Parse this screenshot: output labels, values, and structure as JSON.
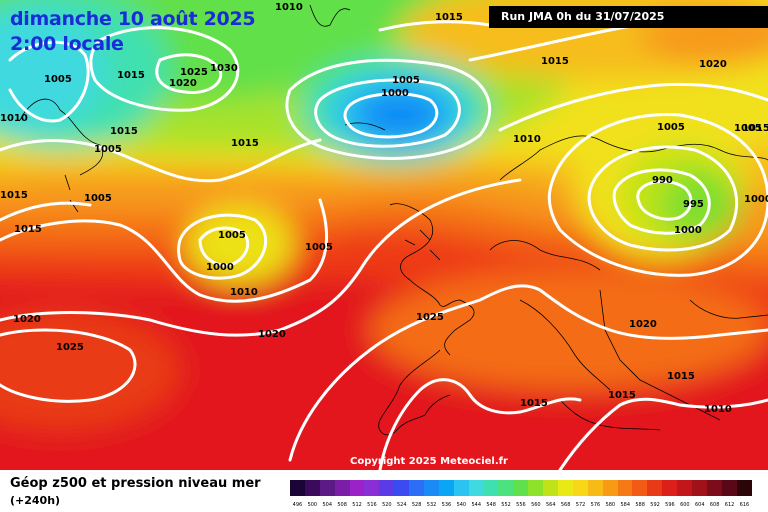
{
  "header": {
    "date": "dimanche 10 août 2025",
    "time": "2:00 locale",
    "run": "Run JMA 0h du 31/07/2025"
  },
  "copyright": "Copyright 2025 Meteociel.fr",
  "footer": {
    "title": "Géop z500 et pression niveau mer",
    "subtitle": "(+240h)"
  },
  "legend": {
    "labels": [
      "496",
      "500",
      "504",
      "508",
      "512",
      "516",
      "520",
      "524",
      "528",
      "532",
      "536",
      "540",
      "544",
      "548",
      "552",
      "556",
      "560",
      "564",
      "568",
      "572",
      "576",
      "580",
      "584",
      "588",
      "592",
      "596",
      "600",
      "604",
      "608",
      "612",
      "616"
    ],
    "colors": [
      "#1b0536",
      "#3b0a5c",
      "#5c1a86",
      "#7a1ea7",
      "#9b22c7",
      "#8a2fd6",
      "#5b3be6",
      "#3b4bf0",
      "#2c6ef5",
      "#1a8af7",
      "#0aa5f5",
      "#2bc4f2",
      "#3fd9e0",
      "#3fe0b0",
      "#4be27f",
      "#60e04a",
      "#8fe22a",
      "#bfe318",
      "#e9ea15",
      "#f7d717",
      "#f8ba16",
      "#f89a14",
      "#f67a14",
      "#f25a15",
      "#e93a17",
      "#dc2019",
      "#c3161a",
      "#a1111a",
      "#7d0c1a",
      "#5a0818",
      "#2c0508"
    ],
    "text_color_dark": "#000000"
  },
  "isobars": [
    {
      "label": "1010",
      "type": "pressure"
    },
    {
      "label": "1015",
      "type": "pressure"
    },
    {
      "label": "1015",
      "type": "pressure"
    },
    {
      "label": "1005",
      "type": "pressure"
    },
    {
      "label": "1015",
      "type": "pressure"
    },
    {
      "label": "1020",
      "type": "pressure"
    },
    {
      "label": "1025",
      "type": "pressure"
    },
    {
      "label": "1030",
      "type": "pressure"
    },
    {
      "label": "1005",
      "type": "pressure"
    },
    {
      "label": "1000",
      "type": "pressure"
    },
    {
      "label": "1020",
      "type": "pressure"
    },
    {
      "label": "1015",
      "type": "pressure"
    },
    {
      "label": "1010",
      "type": "pressure"
    },
    {
      "label": "1015",
      "type": "pressure"
    },
    {
      "label": "1010",
      "type": "pressure"
    },
    {
      "label": "1005",
      "type": "pressure"
    },
    {
      "label": "1015",
      "type": "pressure"
    },
    {
      "label": "1005",
      "type": "pressure"
    },
    {
      "label": "1005",
      "type": "pressure"
    },
    {
      "label": "1015",
      "type": "pressure"
    },
    {
      "label": "1005",
      "type": "pressure"
    },
    {
      "label": "1000",
      "type": "pressure"
    },
    {
      "label": "1010",
      "type": "pressure"
    },
    {
      "label": "1015",
      "type": "pressure"
    },
    {
      "label": "1020",
      "type": "pressure"
    },
    {
      "label": "1020",
      "type": "pressure"
    },
    {
      "label": "1025",
      "type": "pressure"
    },
    {
      "label": "1025",
      "type": "pressure"
    },
    {
      "label": "1005",
      "type": "pressure"
    },
    {
      "label": "1005",
      "type": "pressure"
    },
    {
      "label": "990",
      "type": "pressure"
    },
    {
      "label": "995",
      "type": "pressure"
    },
    {
      "label": "1000",
      "type": "pressure"
    },
    {
      "label": "1000",
      "type": "pressure"
    },
    {
      "label": "1020",
      "type": "pressure"
    },
    {
      "label": "1015",
      "type": "pressure"
    },
    {
      "label": "1015",
      "type": "pressure"
    },
    {
      "label": "1015",
      "type": "pressure"
    },
    {
      "label": "1010",
      "type": "pressure"
    }
  ]
}
